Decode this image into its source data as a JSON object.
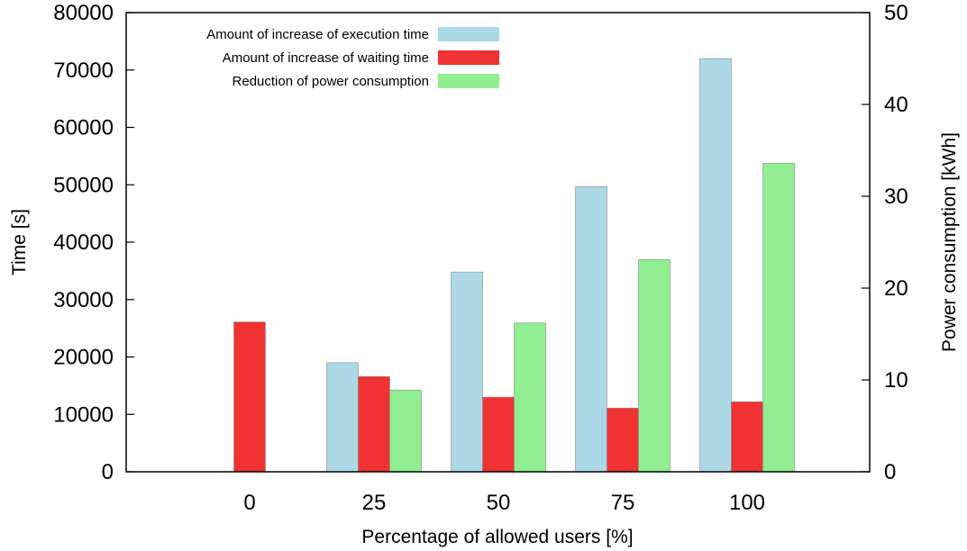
{
  "chart_data": {
    "type": "bar",
    "categories": [
      "0",
      "25",
      "50",
      "75",
      "100"
    ],
    "xlabel": "Percentage of allowed users [%]",
    "ylabel": "Time [s]",
    "y2label": "Power consumption [kWh]",
    "ylim": [
      0,
      80000
    ],
    "y2lim": [
      0,
      50
    ],
    "yticks": [
      "0",
      "10000",
      "20000",
      "30000",
      "40000",
      "50000",
      "60000",
      "70000",
      "80000"
    ],
    "y2ticks": [
      "0",
      "10",
      "20",
      "30",
      "40",
      "50"
    ],
    "grid": false,
    "legend_position": "top-left",
    "series": [
      {
        "name": "Amount of increase of execution time",
        "axis": "left",
        "color": "#add8e6",
        "values": [
          null,
          19000,
          34800,
          49700,
          72000
        ]
      },
      {
        "name": "Amount of increase of waiting time",
        "axis": "left",
        "color": "#f03232",
        "values": [
          26100,
          16600,
          13000,
          11100,
          12200
        ]
      },
      {
        "name": "Reduction of power consumption",
        "axis": "right",
        "color": "#90ee90",
        "values": [
          null,
          8.9,
          16.2,
          23.1,
          33.6
        ]
      }
    ]
  }
}
